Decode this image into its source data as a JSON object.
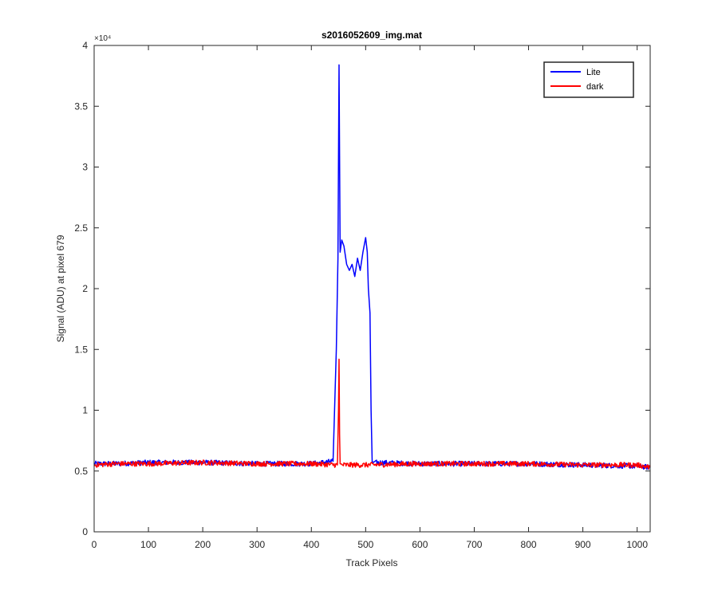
{
  "chart_data": {
    "type": "line",
    "title": "s2016052609_img.mat",
    "xlabel": "Track Pixels",
    "ylabel": "Signal (ADU) at pixel 679",
    "xlim": [
      0,
      1024
    ],
    "ylim": [
      0,
      40000
    ],
    "y_exponent_label": "×10⁴",
    "xticks": [
      0,
      100,
      200,
      300,
      400,
      500,
      600,
      700,
      800,
      900,
      1000
    ],
    "xtick_labels": [
      "0",
      "100",
      "200",
      "300",
      "400",
      "500",
      "600",
      "700",
      "800",
      "900",
      "1000"
    ],
    "yticks": [
      0,
      5000,
      10000,
      15000,
      20000,
      25000,
      30000,
      35000,
      40000
    ],
    "ytick_labels": [
      "0",
      "0.5",
      "1",
      "1.5",
      "2",
      "2.5",
      "3",
      "3.5",
      "4"
    ],
    "grid": false,
    "legend_position": "top-right",
    "colors": {
      "lite": "#0000ff",
      "dark": "#ff0000"
    },
    "series": [
      {
        "name": "Lite",
        "color": "#0000ff",
        "x": [
          0,
          40,
          100,
          200,
          300,
          400,
          440,
          446,
          449,
          451,
          453,
          456,
          460,
          465,
          470,
          475,
          480,
          485,
          490,
          495,
          500,
          503,
          505,
          508,
          510,
          512,
          514,
          520,
          600,
          700,
          800,
          900,
          1000,
          1024
        ],
        "y": [
          5600,
          5600,
          5700,
          5700,
          5600,
          5600,
          5800,
          15000,
          22500,
          38400,
          23000,
          24000,
          23500,
          22000,
          21500,
          22000,
          21000,
          22500,
          21500,
          23000,
          24200,
          23000,
          20000,
          18000,
          10000,
          5800,
          5700,
          5700,
          5600,
          5600,
          5600,
          5500,
          5400,
          5300
        ]
      },
      {
        "name": "dark",
        "color": "#ff0000",
        "x": [
          0,
          40,
          100,
          200,
          300,
          400,
          448,
          450,
          451,
          452,
          453,
          455,
          500,
          600,
          700,
          800,
          900,
          1000,
          1024
        ],
        "y": [
          5500,
          5600,
          5600,
          5700,
          5600,
          5600,
          5500,
          10000,
          14200,
          8000,
          5600,
          5500,
          5500,
          5600,
          5600,
          5600,
          5500,
          5500,
          5300
        ]
      }
    ]
  }
}
